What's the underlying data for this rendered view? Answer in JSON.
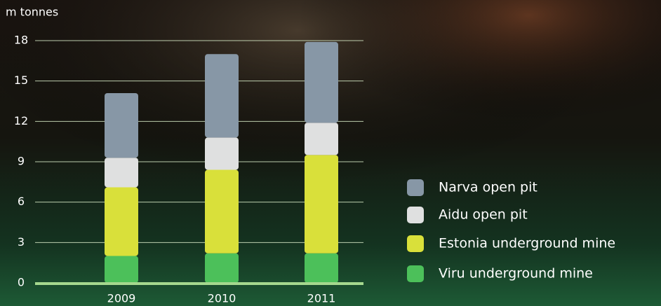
{
  "chart_data": {
    "type": "stacked_bar",
    "y_axis_label": "m tonnes",
    "categories": [
      "2009",
      "2010",
      "2011"
    ],
    "series": [
      {
        "name": "Viru underground mine",
        "color": "#4cc05a",
        "values": [
          2.0,
          2.2,
          2.2
        ]
      },
      {
        "name": "Estonia underground mine",
        "color": "#d9e03a",
        "values": [
          5.1,
          6.2,
          7.3
        ]
      },
      {
        "name": "Aidu open pit",
        "color": "#dfe0e0",
        "values": [
          2.2,
          2.4,
          2.4
        ]
      },
      {
        "name": "Narva open pit",
        "color": "#8797a6",
        "values": [
          4.8,
          6.2,
          6.0
        ]
      }
    ],
    "ylim": [
      0,
      18
    ],
    "yticks": [
      0,
      3,
      6,
      9,
      12,
      15,
      18
    ],
    "grid": true,
    "legend": "right"
  }
}
